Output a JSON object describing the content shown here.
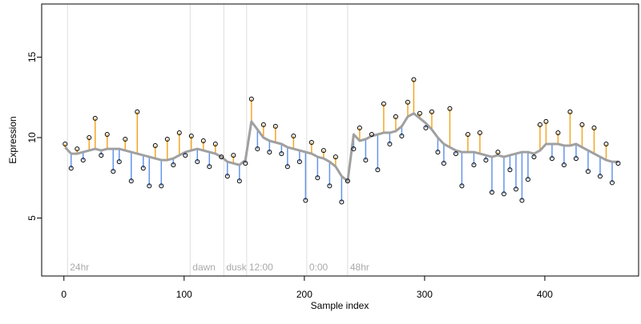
{
  "chart_data": {
    "type": "scatter",
    "xlabel": "Sample index",
    "ylabel": "Expression",
    "xlim": [
      -18.5,
      478
    ],
    "ylim": [
      1.4,
      18.3
    ],
    "xticks": [
      0,
      100,
      200,
      300,
      400
    ],
    "yticks": [
      5,
      10,
      15
    ],
    "x": [
      1,
      6,
      11,
      16,
      21,
      26,
      31,
      36,
      41,
      46,
      51,
      56,
      61,
      66,
      71,
      76,
      81,
      86,
      91,
      96,
      101,
      106,
      111,
      116,
      121,
      126,
      131,
      136,
      141,
      146,
      151,
      156,
      161,
      166,
      171,
      176,
      181,
      186,
      191,
      196,
      201,
      206,
      211,
      216,
      221,
      226,
      231,
      236,
      241,
      246,
      251,
      256,
      261,
      266,
      271,
      276,
      281,
      286,
      291,
      296,
      301,
      306,
      311,
      316,
      321,
      326,
      331,
      336,
      341,
      346,
      351,
      356,
      361,
      366,
      371,
      376,
      381,
      386,
      391,
      396,
      401,
      406,
      411,
      416,
      421,
      426,
      431,
      436,
      441,
      446,
      451,
      456,
      461
    ],
    "values": [
      9.6,
      8.1,
      9.3,
      8.6,
      10.0,
      11.2,
      8.9,
      10.2,
      7.9,
      8.5,
      9.9,
      7.3,
      11.6,
      8.1,
      7.0,
      9.5,
      7.0,
      9.9,
      8.3,
      10.3,
      8.9,
      10.1,
      8.5,
      9.8,
      8.2,
      9.6,
      8.8,
      7.6,
      8.9,
      7.3,
      8.4,
      12.4,
      9.3,
      10.8,
      9.1,
      10.7,
      9.0,
      8.2,
      10.1,
      8.5,
      6.1,
      9.7,
      7.5,
      9.2,
      7.0,
      8.8,
      6.0,
      7.3,
      9.3,
      10.6,
      8.6,
      10.2,
      8.0,
      12.1,
      9.6,
      11.3,
      10.1,
      12.2,
      13.6,
      11.5,
      10.6,
      11.6,
      9.1,
      8.4,
      11.8,
      9.0,
      7.0,
      10.2,
      8.3,
      10.3,
      8.6,
      6.6,
      9.1,
      6.5,
      8.0,
      6.8,
      6.1,
      7.4,
      8.8,
      10.8,
      11.0,
      8.7,
      10.3,
      8.3,
      11.6,
      8.7,
      10.8,
      7.9,
      10.6,
      7.6,
      9.6,
      7.2,
      8.4
    ],
    "trend": {
      "color": "#a0a0a0",
      "values": [
        9.4,
        9.0,
        9.0,
        9.1,
        9.2,
        9.3,
        9.2,
        9.3,
        9.3,
        9.3,
        9.2,
        9.1,
        9.0,
        8.9,
        8.8,
        8.7,
        8.6,
        8.6,
        8.7,
        8.9,
        9.1,
        9.2,
        9.3,
        9.2,
        9.1,
        9.0,
        8.8,
        8.5,
        8.4,
        8.3,
        8.6,
        11.0,
        10.5,
        10.0,
        9.8,
        9.7,
        9.6,
        9.4,
        9.3,
        9.2,
        9.1,
        9.0,
        8.8,
        8.7,
        8.5,
        8.2,
        7.6,
        7.3,
        10.2,
        9.8,
        9.9,
        10.1,
        10.2,
        10.3,
        10.3,
        10.4,
        10.7,
        11.3,
        11.5,
        11.2,
        10.9,
        10.5,
        10.0,
        9.6,
        9.4,
        9.2,
        9.1,
        9.1,
        9.1,
        9.0,
        8.9,
        8.8,
        8.9,
        8.8,
        8.9,
        9.0,
        9.1,
        9.1,
        9.0,
        9.2,
        9.6,
        9.6,
        9.6,
        9.5,
        9.5,
        9.6,
        9.4,
        9.2,
        9.0,
        8.8,
        8.6,
        8.5,
        8.5
      ]
    },
    "above_color": "#f5a623",
    "below_color": "#6495ed",
    "markers": [
      {
        "x": 3,
        "label": "24hr"
      },
      {
        "x": 105,
        "label": "dawn"
      },
      {
        "x": 133,
        "label": "dusk"
      },
      {
        "x": 152,
        "label": "12:00"
      },
      {
        "x": 202,
        "label": "0:00"
      },
      {
        "x": 236,
        "label": "48hr"
      }
    ]
  }
}
